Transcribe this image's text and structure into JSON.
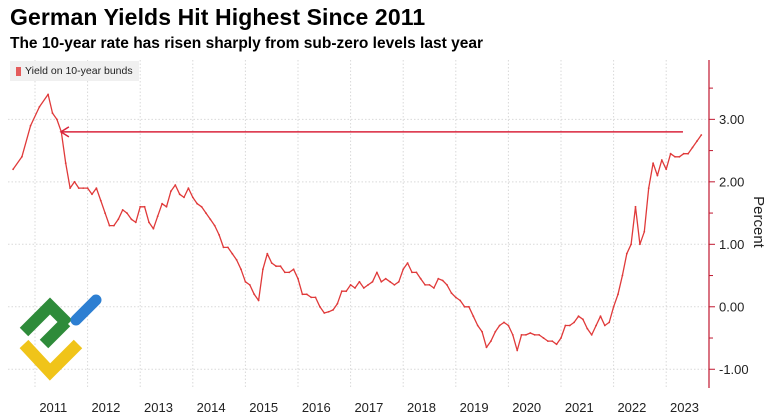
{
  "header": {
    "title": "German Yields Hit Highest Since 2011",
    "subtitle": "The 10-year rate has risen sharply from sub-zero levels last year"
  },
  "legend": {
    "label": "Yield on 10-year bunds"
  },
  "colors": {
    "series": "#e03a3a",
    "arrow": "#d9243c",
    "axis": "#c0172f",
    "grid": "#d9d9d9"
  },
  "chart_data": {
    "type": "line",
    "title": "German Yields Hit Highest Since 2011",
    "subtitle": "The 10-year rate has risen sharply from sub-zero levels last year",
    "xlabel": "",
    "ylabel": "Percent",
    "ylim": [
      -1.3,
      3.95
    ],
    "y_ticks": [
      3.0,
      2.0,
      1.0,
      0.0,
      -1.0
    ],
    "y_tick_labels": [
      "3.00",
      "2.00",
      "1.00",
      "0.00",
      "-1.00"
    ],
    "x_tick_labels": [
      "2011",
      "2012",
      "2013",
      "2014",
      "2015",
      "2016",
      "2017",
      "2018",
      "2019",
      "2020",
      "2021",
      "2022",
      "2023"
    ],
    "grid": true,
    "legend_position": "top-left",
    "y_axis_side": "right",
    "annotation": {
      "type": "horizontal-arrow",
      "y": 2.8,
      "from": "2023-03",
      "to": "2011-06"
    },
    "series": [
      {
        "name": "Yield on 10-year bunds",
        "points": [
          [
            "2010-08",
            2.2
          ],
          [
            "2010-10",
            2.4
          ],
          [
            "2010-12",
            2.9
          ],
          [
            "2011-02",
            3.2
          ],
          [
            "2011-04",
            3.4
          ],
          [
            "2011-05",
            3.1
          ],
          [
            "2011-06",
            3.0
          ],
          [
            "2011-07",
            2.8
          ],
          [
            "2011-08",
            2.3
          ],
          [
            "2011-09",
            1.9
          ],
          [
            "2011-10",
            2.0
          ],
          [
            "2011-11",
            1.9
          ],
          [
            "2011-12",
            1.9
          ],
          [
            "2012-01",
            1.9
          ],
          [
            "2012-02",
            1.8
          ],
          [
            "2012-03",
            1.9
          ],
          [
            "2012-04",
            1.7
          ],
          [
            "2012-05",
            1.5
          ],
          [
            "2012-06",
            1.3
          ],
          [
            "2012-07",
            1.3
          ],
          [
            "2012-08",
            1.4
          ],
          [
            "2012-09",
            1.55
          ],
          [
            "2012-10",
            1.5
          ],
          [
            "2012-11",
            1.4
          ],
          [
            "2012-12",
            1.35
          ],
          [
            "2013-01",
            1.6
          ],
          [
            "2013-02",
            1.6
          ],
          [
            "2013-03",
            1.35
          ],
          [
            "2013-04",
            1.25
          ],
          [
            "2013-05",
            1.45
          ],
          [
            "2013-06",
            1.65
          ],
          [
            "2013-07",
            1.6
          ],
          [
            "2013-08",
            1.85
          ],
          [
            "2013-09",
            1.95
          ],
          [
            "2013-10",
            1.8
          ],
          [
            "2013-11",
            1.75
          ],
          [
            "2013-12",
            1.9
          ],
          [
            "2014-01",
            1.75
          ],
          [
            "2014-02",
            1.65
          ],
          [
            "2014-03",
            1.6
          ],
          [
            "2014-04",
            1.5
          ],
          [
            "2014-05",
            1.4
          ],
          [
            "2014-06",
            1.3
          ],
          [
            "2014-07",
            1.15
          ],
          [
            "2014-08",
            0.95
          ],
          [
            "2014-09",
            0.95
          ],
          [
            "2014-10",
            0.85
          ],
          [
            "2014-11",
            0.75
          ],
          [
            "2014-12",
            0.6
          ],
          [
            "2015-01",
            0.4
          ],
          [
            "2015-02",
            0.35
          ],
          [
            "2015-03",
            0.2
          ],
          [
            "2015-04",
            0.1
          ],
          [
            "2015-05",
            0.6
          ],
          [
            "2015-06",
            0.85
          ],
          [
            "2015-07",
            0.7
          ],
          [
            "2015-08",
            0.65
          ],
          [
            "2015-09",
            0.65
          ],
          [
            "2015-10",
            0.55
          ],
          [
            "2015-11",
            0.55
          ],
          [
            "2015-12",
            0.6
          ],
          [
            "2016-01",
            0.45
          ],
          [
            "2016-02",
            0.2
          ],
          [
            "2016-03",
            0.2
          ],
          [
            "2016-04",
            0.15
          ],
          [
            "2016-05",
            0.15
          ],
          [
            "2016-06",
            0.0
          ],
          [
            "2016-07",
            -0.1
          ],
          [
            "2016-08",
            -0.08
          ],
          [
            "2016-09",
            -0.05
          ],
          [
            "2016-10",
            0.05
          ],
          [
            "2016-11",
            0.25
          ],
          [
            "2016-12",
            0.25
          ],
          [
            "2017-01",
            0.35
          ],
          [
            "2017-02",
            0.3
          ],
          [
            "2017-03",
            0.4
          ],
          [
            "2017-04",
            0.3
          ],
          [
            "2017-05",
            0.35
          ],
          [
            "2017-06",
            0.4
          ],
          [
            "2017-07",
            0.55
          ],
          [
            "2017-08",
            0.4
          ],
          [
            "2017-09",
            0.45
          ],
          [
            "2017-10",
            0.4
          ],
          [
            "2017-11",
            0.35
          ],
          [
            "2017-12",
            0.4
          ],
          [
            "2018-01",
            0.6
          ],
          [
            "2018-02",
            0.7
          ],
          [
            "2018-03",
            0.55
          ],
          [
            "2018-04",
            0.55
          ],
          [
            "2018-05",
            0.45
          ],
          [
            "2018-06",
            0.35
          ],
          [
            "2018-07",
            0.35
          ],
          [
            "2018-08",
            0.3
          ],
          [
            "2018-09",
            0.45
          ],
          [
            "2018-10",
            0.42
          ],
          [
            "2018-11",
            0.35
          ],
          [
            "2018-12",
            0.22
          ],
          [
            "2019-01",
            0.15
          ],
          [
            "2019-02",
            0.1
          ],
          [
            "2019-03",
            0.0
          ],
          [
            "2019-04",
            0.0
          ],
          [
            "2019-05",
            -0.15
          ],
          [
            "2019-06",
            -0.3
          ],
          [
            "2019-07",
            -0.4
          ],
          [
            "2019-08",
            -0.65
          ],
          [
            "2019-09",
            -0.55
          ],
          [
            "2019-10",
            -0.4
          ],
          [
            "2019-11",
            -0.3
          ],
          [
            "2019-12",
            -0.25
          ],
          [
            "2020-01",
            -0.3
          ],
          [
            "2020-02",
            -0.45
          ],
          [
            "2020-03",
            -0.7
          ],
          [
            "2020-04",
            -0.45
          ],
          [
            "2020-05",
            -0.45
          ],
          [
            "2020-06",
            -0.42
          ],
          [
            "2020-07",
            -0.45
          ],
          [
            "2020-08",
            -0.45
          ],
          [
            "2020-09",
            -0.5
          ],
          [
            "2020-10",
            -0.55
          ],
          [
            "2020-11",
            -0.55
          ],
          [
            "2020-12",
            -0.6
          ],
          [
            "2021-01",
            -0.5
          ],
          [
            "2021-02",
            -0.3
          ],
          [
            "2021-03",
            -0.3
          ],
          [
            "2021-04",
            -0.25
          ],
          [
            "2021-05",
            -0.15
          ],
          [
            "2021-06",
            -0.2
          ],
          [
            "2021-07",
            -0.35
          ],
          [
            "2021-08",
            -0.45
          ],
          [
            "2021-09",
            -0.3
          ],
          [
            "2021-10",
            -0.15
          ],
          [
            "2021-11",
            -0.3
          ],
          [
            "2021-12",
            -0.25
          ],
          [
            "2022-01",
            0.0
          ],
          [
            "2022-02",
            0.2
          ],
          [
            "2022-03",
            0.5
          ],
          [
            "2022-04",
            0.85
          ],
          [
            "2022-05",
            1.0
          ],
          [
            "2022-06",
            1.6
          ],
          [
            "2022-07",
            1.0
          ],
          [
            "2022-08",
            1.2
          ],
          [
            "2022-09",
            1.9
          ],
          [
            "2022-10",
            2.3
          ],
          [
            "2022-11",
            2.1
          ],
          [
            "2022-12",
            2.35
          ],
          [
            "2023-01",
            2.2
          ],
          [
            "2023-02",
            2.45
          ],
          [
            "2023-03",
            2.4
          ],
          [
            "2023-04",
            2.4
          ],
          [
            "2023-05",
            2.45
          ],
          [
            "2023-06",
            2.45
          ],
          [
            "2023-07",
            2.55
          ],
          [
            "2023-08",
            2.65
          ],
          [
            "2023-09",
            2.75
          ]
        ]
      }
    ]
  }
}
